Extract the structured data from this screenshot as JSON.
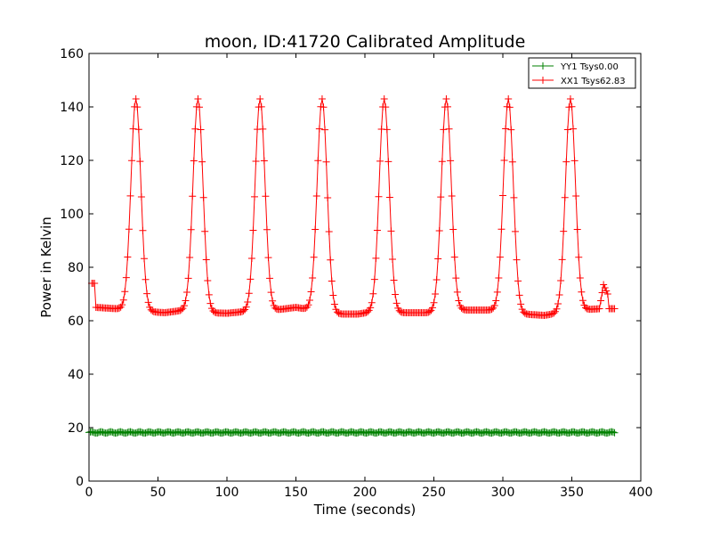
{
  "chart_data": {
    "type": "line",
    "title": "moon, ID:41720 Calibrated Amplitude",
    "xlabel": "Time (seconds)",
    "ylabel": "Power in Kelvin",
    "xlim": [
      0,
      400
    ],
    "ylim": [
      0,
      160
    ],
    "xticks": [
      0,
      50,
      100,
      150,
      200,
      250,
      300,
      350,
      400
    ],
    "yticks": [
      0,
      20,
      40,
      60,
      80,
      100,
      120,
      140,
      160
    ],
    "grid": false,
    "legend_position": "top-right",
    "series": [
      {
        "name": "YY1 Tsys0.00",
        "color": "#008000",
        "marker": "+",
        "start": 0,
        "end": 381,
        "step": 1,
        "base": 18.2,
        "flat_value": 18.5
      },
      {
        "name": "XX1 Tsys62.83",
        "color": "#ff0000",
        "marker": "+",
        "start": 2,
        "end": 381,
        "step": 1,
        "flat_value": 65,
        "peak_width": 3.6,
        "peaks": [
          {
            "t": 34,
            "v": 143
          },
          {
            "t": 79,
            "v": 143
          },
          {
            "t": 124,
            "v": 143
          },
          {
            "t": 169,
            "v": 143
          },
          {
            "t": 214,
            "v": 143
          },
          {
            "t": 259,
            "v": 143
          },
          {
            "t": 304,
            "v": 143
          },
          {
            "t": 349,
            "v": 143
          }
        ],
        "baseline_knots": [
          {
            "t": 2,
            "v": 74
          },
          {
            "t": 4,
            "v": 74
          },
          {
            "t": 5,
            "v": 65
          },
          {
            "t": 20,
            "v": 64.5
          },
          {
            "t": 40,
            "v": 63.5
          },
          {
            "t": 55,
            "v": 63
          },
          {
            "t": 70,
            "v": 64
          },
          {
            "t": 85,
            "v": 63
          },
          {
            "t": 100,
            "v": 62.8
          },
          {
            "t": 115,
            "v": 63.5
          },
          {
            "t": 135,
            "v": 64
          },
          {
            "t": 150,
            "v": 65
          },
          {
            "t": 162,
            "v": 64
          },
          {
            "t": 180,
            "v": 62.5
          },
          {
            "t": 195,
            "v": 62.5
          },
          {
            "t": 208,
            "v": 63.5
          },
          {
            "t": 225,
            "v": 63
          },
          {
            "t": 245,
            "v": 63
          },
          {
            "t": 265,
            "v": 64
          },
          {
            "t": 290,
            "v": 64
          },
          {
            "t": 300,
            "v": 64
          },
          {
            "t": 315,
            "v": 62.5
          },
          {
            "t": 330,
            "v": 62
          },
          {
            "t": 342,
            "v": 63
          },
          {
            "t": 356,
            "v": 64
          },
          {
            "t": 370,
            "v": 64.5
          },
          {
            "t": 373,
            "v": 73.5
          },
          {
            "t": 376,
            "v": 70
          },
          {
            "t": 377,
            "v": 64.5
          },
          {
            "t": 381,
            "v": 64.5
          }
        ]
      }
    ]
  }
}
